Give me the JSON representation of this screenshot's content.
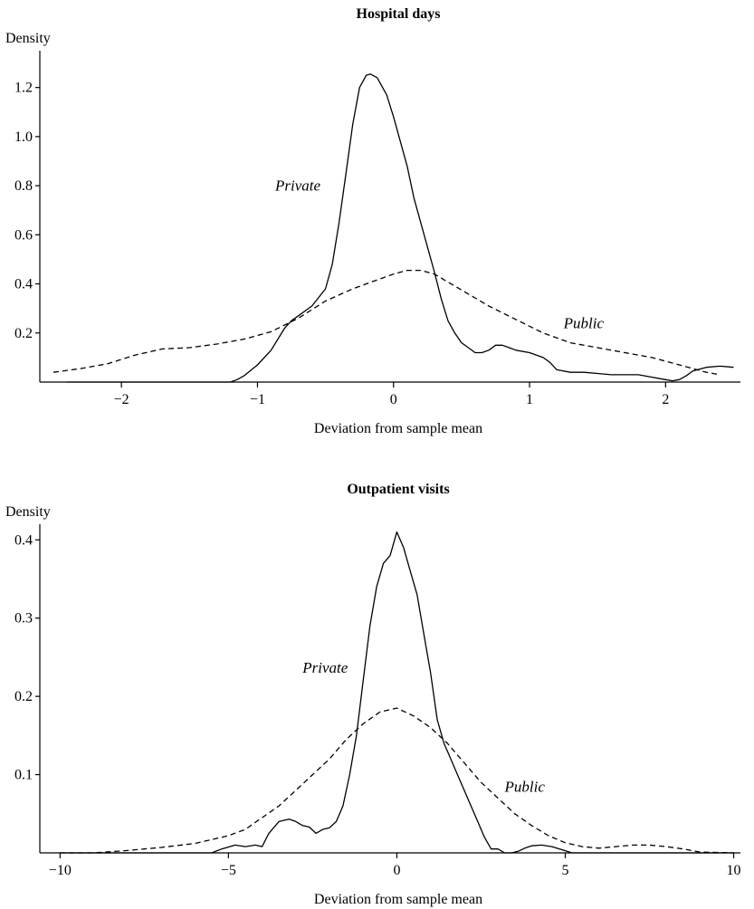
{
  "chart_data": [
    {
      "type": "line",
      "title": "Hospital days",
      "ylabel": "Density",
      "xlabel": "Deviation from sample mean",
      "xlim": [
        -2.6,
        2.55
      ],
      "ylim": [
        0,
        1.35
      ],
      "xticks": [
        -2,
        -1,
        0,
        1,
        2
      ],
      "xtick_labels": [
        "−2",
        "−1",
        "0",
        "1",
        "2"
      ],
      "yticks": [
        0.2,
        0.4,
        0.6,
        0.8,
        1.0,
        1.2
      ],
      "ytick_labels": [
        "0.2",
        "0.4",
        "0.6",
        "0.8",
        "1.0",
        "1.2"
      ],
      "grid": false,
      "legend": "inline labels",
      "series": [
        {
          "name": "Private",
          "style": "solid",
          "label_at": [
            -0.87,
            0.78
          ],
          "x": [
            -2.4,
            -1.2,
            -1.15,
            -1.1,
            -1.0,
            -0.9,
            -0.8,
            -0.75,
            -0.7,
            -0.6,
            -0.5,
            -0.45,
            -0.4,
            -0.35,
            -0.3,
            -0.25,
            -0.2,
            -0.17,
            -0.12,
            -0.05,
            0.0,
            0.05,
            0.1,
            0.15,
            0.2,
            0.25,
            0.3,
            0.35,
            0.4,
            0.45,
            0.5,
            0.55,
            0.6,
            0.65,
            0.7,
            0.75,
            0.8,
            0.85,
            0.9,
            1.0,
            1.1,
            1.15,
            1.2,
            1.3,
            1.4,
            1.5,
            1.6,
            1.7,
            1.8,
            1.9,
            2.0,
            2.05,
            2.1,
            2.15,
            2.2,
            2.3,
            2.4,
            2.5
          ],
          "y": [
            0.0,
            0.0,
            0.01,
            0.025,
            0.07,
            0.13,
            0.22,
            0.25,
            0.27,
            0.31,
            0.38,
            0.48,
            0.65,
            0.85,
            1.05,
            1.2,
            1.25,
            1.255,
            1.24,
            1.17,
            1.08,
            0.98,
            0.88,
            0.75,
            0.65,
            0.55,
            0.45,
            0.34,
            0.25,
            0.2,
            0.16,
            0.14,
            0.12,
            0.12,
            0.13,
            0.15,
            0.15,
            0.14,
            0.13,
            0.12,
            0.1,
            0.08,
            0.05,
            0.04,
            0.04,
            0.035,
            0.03,
            0.03,
            0.03,
            0.02,
            0.01,
            0.005,
            0.01,
            0.025,
            0.045,
            0.06,
            0.065,
            0.06
          ]
        },
        {
          "name": "Public",
          "style": "dashed",
          "label_at": [
            1.25,
            0.22
          ],
          "x": [
            -2.5,
            -2.3,
            -2.1,
            -1.9,
            -1.7,
            -1.5,
            -1.3,
            -1.1,
            -0.9,
            -0.7,
            -0.5,
            -0.3,
            -0.1,
            0.0,
            0.1,
            0.2,
            0.3,
            0.5,
            0.7,
            0.9,
            1.1,
            1.3,
            1.5,
            1.7,
            1.9,
            2.1,
            2.3,
            2.4
          ],
          "y": [
            0.04,
            0.055,
            0.075,
            0.11,
            0.135,
            0.14,
            0.155,
            0.175,
            0.205,
            0.26,
            0.33,
            0.38,
            0.42,
            0.44,
            0.455,
            0.455,
            0.44,
            0.375,
            0.31,
            0.255,
            0.2,
            0.16,
            0.14,
            0.12,
            0.1,
            0.07,
            0.04,
            0.03
          ]
        }
      ]
    },
    {
      "type": "line",
      "title": "Outpatient visits",
      "ylabel": "Density",
      "xlabel": "Deviation from sample mean",
      "xlim": [
        -10.6,
        10.2
      ],
      "ylim": [
        0,
        0.42
      ],
      "xticks": [
        -10,
        -5,
        0,
        5,
        10
      ],
      "xtick_labels": [
        "−10",
        "−5",
        "0",
        "5",
        "10"
      ],
      "yticks": [
        0.1,
        0.2,
        0.3,
        0.4
      ],
      "ytick_labels": [
        "0.1",
        "0.2",
        "0.3",
        "0.4"
      ],
      "grid": false,
      "legend": "inline labels",
      "series": [
        {
          "name": "Private",
          "style": "solid",
          "label_at": [
            -2.8,
            0.23
          ],
          "x": [
            -10,
            -5.5,
            -5.2,
            -4.8,
            -4.5,
            -4.2,
            -4.0,
            -3.8,
            -3.5,
            -3.2,
            -3.0,
            -2.8,
            -2.6,
            -2.4,
            -2.2,
            -2.0,
            -1.8,
            -1.6,
            -1.4,
            -1.2,
            -1.0,
            -0.8,
            -0.6,
            -0.4,
            -0.2,
            0.0,
            0.2,
            0.4,
            0.6,
            0.8,
            1.0,
            1.2,
            1.4,
            1.6,
            1.8,
            2.0,
            2.2,
            2.4,
            2.6,
            2.8,
            3.0,
            3.2,
            3.4,
            3.6,
            3.8,
            4.0,
            4.3,
            4.6,
            4.9,
            5.2,
            5.5,
            6.0,
            10
          ],
          "y": [
            0.0,
            0.0,
            0.005,
            0.01,
            0.008,
            0.01,
            0.008,
            0.025,
            0.04,
            0.043,
            0.04,
            0.035,
            0.033,
            0.025,
            0.03,
            0.032,
            0.04,
            0.06,
            0.1,
            0.15,
            0.22,
            0.29,
            0.34,
            0.37,
            0.38,
            0.41,
            0.39,
            0.36,
            0.33,
            0.28,
            0.23,
            0.17,
            0.14,
            0.12,
            0.1,
            0.08,
            0.06,
            0.04,
            0.02,
            0.005,
            0.005,
            0.0,
            0.0,
            0.002,
            0.006,
            0.009,
            0.01,
            0.008,
            0.004,
            0.0,
            0.0,
            0.0,
            0.0
          ]
        },
        {
          "name": "Public",
          "style": "dashed",
          "label_at": [
            3.2,
            0.078
          ],
          "x": [
            -10,
            -9.0,
            -8.0,
            -7.0,
            -6.0,
            -5.0,
            -4.5,
            -4.0,
            -3.5,
            -3.0,
            -2.5,
            -2.0,
            -1.5,
            -1.0,
            -0.5,
            0.0,
            0.5,
            1.0,
            1.5,
            2.0,
            2.5,
            3.0,
            3.5,
            4.0,
            4.5,
            5.0,
            5.5,
            6.0,
            6.5,
            7.0,
            7.5,
            8.0,
            8.5,
            9.0,
            10
          ],
          "y": [
            0.0,
            0.0,
            0.003,
            0.007,
            0.012,
            0.022,
            0.03,
            0.045,
            0.06,
            0.08,
            0.1,
            0.12,
            0.145,
            0.165,
            0.18,
            0.185,
            0.175,
            0.16,
            0.14,
            0.115,
            0.09,
            0.07,
            0.05,
            0.035,
            0.022,
            0.013,
            0.008,
            0.006,
            0.008,
            0.01,
            0.01,
            0.008,
            0.005,
            0.001,
            0.0
          ]
        }
      ]
    }
  ]
}
